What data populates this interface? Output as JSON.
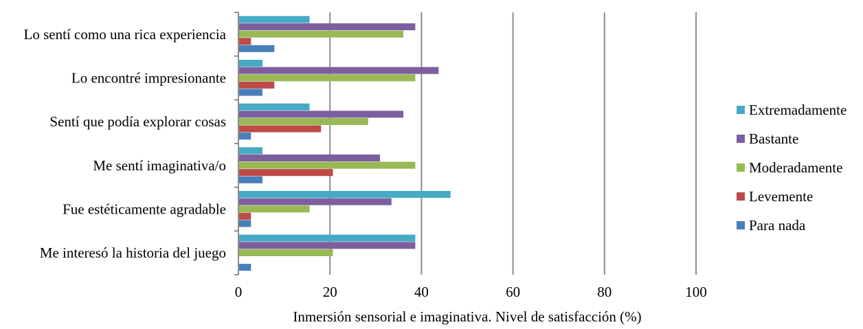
{
  "chart_data": {
    "type": "bar",
    "orientation": "horizontal",
    "categories": [
      "Me interesó la historia del juego",
      "Fue estéticamente agradable",
      "Me sentí imaginativa/o",
      "Sentí que podía explorar cosas",
      "Lo encontré impresionante",
      "Lo sentí como una rica experiencia"
    ],
    "series": [
      {
        "name": "Para nada",
        "color": "#4a7ebb",
        "values": [
          2.6,
          2.6,
          5.1,
          2.6,
          5.1,
          7.7
        ]
      },
      {
        "name": "Levemente",
        "color": "#be4b48",
        "values": [
          0,
          2.6,
          20.5,
          17.9,
          7.7,
          2.6
        ]
      },
      {
        "name": "Moderadamente",
        "color": "#98b954",
        "values": [
          20.5,
          15.4,
          38.5,
          28.2,
          38.5,
          35.9
        ]
      },
      {
        "name": "Bastante",
        "color": "#7d5fa0",
        "values": [
          38.5,
          33.3,
          30.8,
          35.9,
          43.6,
          38.5
        ]
      },
      {
        "name": "Extremadamente",
        "color": "#46aac5",
        "values": [
          38.5,
          46.2,
          5.1,
          15.4,
          5.1,
          15.4
        ]
      }
    ],
    "xlabel": "Inmersión sensorial e imaginativa. Nivel de satisfacción (%)",
    "xlim": [
      0,
      100
    ],
    "xticks": [
      "0",
      "20",
      "40",
      "60",
      "80",
      "100"
    ],
    "legend_position": "right",
    "grid": "vertical"
  }
}
